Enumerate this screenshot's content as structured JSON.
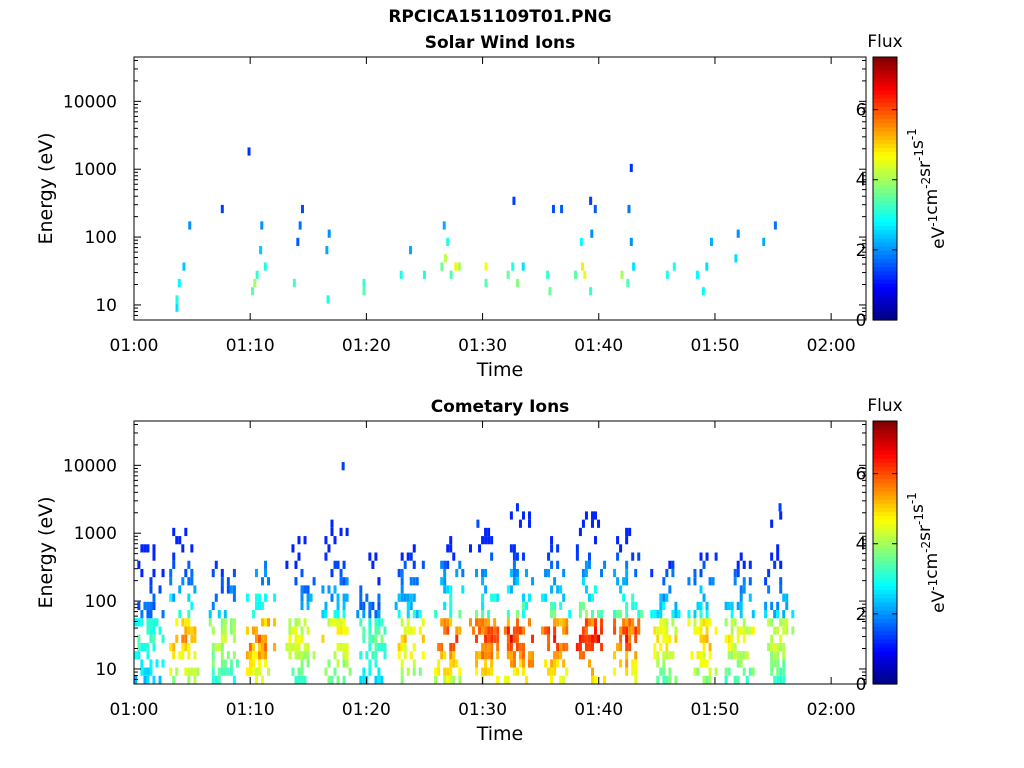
{
  "figure_title": "RPCICA151109T01.PNG",
  "colors": {
    "axis": "#000000",
    "background": "#ffffff",
    "colormap": [
      "#00007f",
      "#0000ff",
      "#007fff",
      "#00ffff",
      "#7fff7f",
      "#ffff00",
      "#ff7f00",
      "#ff0000",
      "#7f0000"
    ]
  },
  "chart_data": [
    {
      "type": "heatmap",
      "title": "Solar Wind Ions",
      "xlabel": "Time",
      "ylabel": "Energy (eV)",
      "y_scale": "log",
      "xlim": [
        "01:00",
        "02:03"
      ],
      "ylim": [
        6,
        45000
      ],
      "x_ticks": [
        "01:00",
        "01:10",
        "01:20",
        "01:30",
        "01:40",
        "01:50",
        "02:00"
      ],
      "y_ticks": [
        "10",
        "100",
        "1000",
        "10000"
      ],
      "colorbar": {
        "title": "Flux",
        "label": "eV-1cm-2sr-1s-1",
        "range": [
          0,
          7.5
        ],
        "ticks": [
          "0",
          "2",
          "4",
          "6"
        ]
      },
      "points": [
        {
          "t": "01:03.7",
          "e": 8,
          "v": 2.6
        },
        {
          "t": "01:03.7",
          "e": 12,
          "v": 3.0
        },
        {
          "t": "01:03.9",
          "e": 20,
          "v": 2.8
        },
        {
          "t": "01:04.3",
          "e": 35,
          "v": 2.4
        },
        {
          "t": "01:04.8",
          "e": 140,
          "v": 2.0
        },
        {
          "t": "01:07.6",
          "e": 270,
          "v": 1.4
        },
        {
          "t": "01:09.9",
          "e": 1600,
          "v": 1.3
        },
        {
          "t": "01:10.2",
          "e": 14,
          "v": 3.5
        },
        {
          "t": "01:10.4",
          "e": 22,
          "v": 4.0
        },
        {
          "t": "01:10.6",
          "e": 28,
          "v": 3.2
        },
        {
          "t": "01:10.9",
          "e": 70,
          "v": 2.4
        },
        {
          "t": "01:11.0",
          "e": 170,
          "v": 2.0
        },
        {
          "t": "01:11.3",
          "e": 40,
          "v": 3.0
        },
        {
          "t": "01:13.8",
          "e": 20,
          "v": 3.3
        },
        {
          "t": "01:14.1",
          "e": 90,
          "v": 1.6
        },
        {
          "t": "01:14.3",
          "e": 165,
          "v": 1.8
        },
        {
          "t": "01:14.5",
          "e": 280,
          "v": 1.5
        },
        {
          "t": "01:16.6",
          "e": 60,
          "v": 2.2
        },
        {
          "t": "01:16.8",
          "e": 110,
          "v": 2.0
        },
        {
          "t": "01:16.7",
          "e": 12,
          "v": 3.0
        },
        {
          "t": "01:19.8",
          "e": 16,
          "v": 3.4
        },
        {
          "t": "01:19.8",
          "e": 22,
          "v": 3.2
        },
        {
          "t": "01:23.0",
          "e": 25,
          "v": 3.0
        },
        {
          "t": "01:23.8",
          "e": 70,
          "v": 2.2
        },
        {
          "t": "01:25.0",
          "e": 30,
          "v": 3.0
        },
        {
          "t": "01:26.5",
          "e": 40,
          "v": 3.6
        },
        {
          "t": "01:26.8",
          "e": 55,
          "v": 4.2
        },
        {
          "t": "01:27.0",
          "e": 75,
          "v": 3.0
        },
        {
          "t": "01:26.7",
          "e": 130,
          "v": 2.2
        },
        {
          "t": "01:27.3",
          "e": 28,
          "v": 3.4
        },
        {
          "t": "01:27.7",
          "e": 40,
          "v": 4.8
        },
        {
          "t": "01:28.0",
          "e": 32,
          "v": 4.0
        },
        {
          "t": "01:30.3",
          "e": 35,
          "v": 4.6
        },
        {
          "t": "01:30.3",
          "e": 22,
          "v": 3.4
        },
        {
          "t": "01:32.2",
          "e": 25,
          "v": 3.6
        },
        {
          "t": "01:32.6",
          "e": 40,
          "v": 3.0
        },
        {
          "t": "01:33.0",
          "e": 22,
          "v": 3.8
        },
        {
          "t": "01:33.5",
          "e": 40,
          "v": 2.6
        },
        {
          "t": "01:32.7",
          "e": 300,
          "v": 1.4
        },
        {
          "t": "01:35.6",
          "e": 25,
          "v": 3.2
        },
        {
          "t": "01:35.8",
          "e": 14,
          "v": 3.6
        },
        {
          "t": "01:36.1",
          "e": 240,
          "v": 1.5
        },
        {
          "t": "01:36.8",
          "e": 270,
          "v": 1.6
        },
        {
          "t": "01:38.0",
          "e": 28,
          "v": 3.5
        },
        {
          "t": "01:38.6",
          "e": 40,
          "v": 4.8
        },
        {
          "t": "01:38.8",
          "e": 30,
          "v": 4.5
        },
        {
          "t": "01:38.5",
          "e": 95,
          "v": 2.8
        },
        {
          "t": "01:39.3",
          "e": 18,
          "v": 3.2
        },
        {
          "t": "01:39.3",
          "e": 380,
          "v": 1.4
        },
        {
          "t": "01:39.7",
          "e": 280,
          "v": 1.6
        },
        {
          "t": "01:39.4",
          "e": 110,
          "v": 2.0
        },
        {
          "t": "01:42.0",
          "e": 30,
          "v": 4.0
        },
        {
          "t": "01:42.5",
          "e": 22,
          "v": 3.4
        },
        {
          "t": "01:42.6",
          "e": 270,
          "v": 1.8
        },
        {
          "t": "01:42.8",
          "e": 1050,
          "v": 1.3
        },
        {
          "t": "01:42.8",
          "e": 75,
          "v": 2.0
        },
        {
          "t": "01:43.0",
          "e": 35,
          "v": 2.6
        },
        {
          "t": "01:45.9",
          "e": 28,
          "v": 3.0
        },
        {
          "t": "01:46.5",
          "e": 38,
          "v": 3.0
        },
        {
          "t": "01:48.5",
          "e": 25,
          "v": 2.8
        },
        {
          "t": "01:49.0",
          "e": 16,
          "v": 2.8
        },
        {
          "t": "01:49.3",
          "e": 40,
          "v": 2.6
        },
        {
          "t": "01:49.7",
          "e": 80,
          "v": 2.2
        },
        {
          "t": "01:51.8",
          "e": 55,
          "v": 2.6
        },
        {
          "t": "01:52.0",
          "e": 110,
          "v": 2.0
        },
        {
          "t": "01:54.2",
          "e": 80,
          "v": 2.2
        },
        {
          "t": "01:55.2",
          "e": 170,
          "v": 1.8
        }
      ]
    },
    {
      "type": "heatmap",
      "title": "Cometary Ions",
      "xlabel": "Time",
      "ylabel": "Energy (eV)",
      "y_scale": "log",
      "xlim": [
        "01:00",
        "02:03"
      ],
      "ylim": [
        6,
        45000
      ],
      "x_ticks": [
        "01:00",
        "01:10",
        "01:20",
        "01:30",
        "01:40",
        "01:50",
        "02:00"
      ],
      "y_ticks": [
        "10",
        "100",
        "1000",
        "10000"
      ],
      "colorbar": {
        "title": "Flux",
        "label": "eV-1cm-2sr-1s-1",
        "range": [
          0,
          7.5
        ],
        "ticks": [
          "0",
          "2",
          "4",
          "6"
        ]
      },
      "bursts": [
        {
          "t": "01:01.2",
          "peak": 3.6,
          "top": 700
        },
        {
          "t": "01:04.2",
          "peak": 5.8,
          "top": 1300
        },
        {
          "t": "01:07.6",
          "peak": 4.6,
          "top": 550
        },
        {
          "t": "01:10.8",
          "peak": 6.2,
          "top": 550
        },
        {
          "t": "01:14.2",
          "peak": 4.8,
          "top": 1200
        },
        {
          "t": "01:17.3",
          "peak": 5.2,
          "top": 1500
        },
        {
          "t": "01:20.3",
          "peak": 3.8,
          "top": 500
        },
        {
          "t": "01:23.6",
          "peak": 5.4,
          "top": 900
        },
        {
          "t": "01:27.0",
          "peak": 6.4,
          "top": 800
        },
        {
          "t": "01:30.0",
          "peak": 6.6,
          "top": 1250
        },
        {
          "t": "01:33.0",
          "peak": 6.8,
          "top": 2400
        },
        {
          "t": "01:36.2",
          "peak": 6.6,
          "top": 800
        },
        {
          "t": "01:39.2",
          "peak": 7.0,
          "top": 2000
        },
        {
          "t": "01:42.4",
          "peak": 6.6,
          "top": 1200
        },
        {
          "t": "01:45.6",
          "peak": 5.2,
          "top": 400
        },
        {
          "t": "01:48.8",
          "peak": 5.6,
          "top": 500
        },
        {
          "t": "01:52.0",
          "peak": 5.0,
          "top": 500
        },
        {
          "t": "01:55.4",
          "peak": 4.8,
          "top": 2400
        }
      ],
      "points": [
        {
          "t": "01:18.0",
          "e": 10500,
          "v": 1.4
        },
        {
          "t": "01:29.6",
          "e": 1250,
          "v": 1.5
        },
        {
          "t": "01:33.0",
          "e": 2400,
          "v": 1.3
        },
        {
          "t": "01:39.5",
          "e": 2000,
          "v": 1.4
        },
        {
          "t": "01:55.6",
          "e": 2400,
          "v": 1.4
        }
      ]
    }
  ]
}
